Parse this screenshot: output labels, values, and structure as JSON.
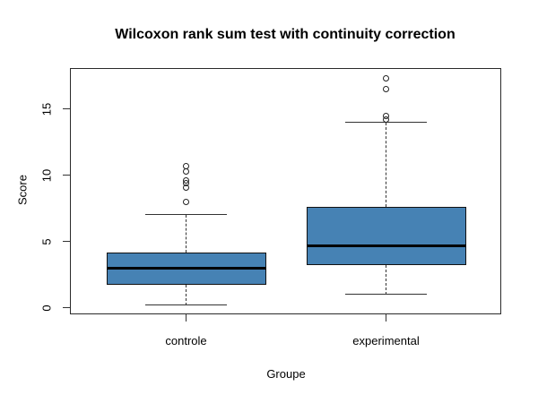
{
  "chart_data": {
    "type": "boxplot",
    "title": "Wilcoxon rank sum test with continuity correction",
    "xlabel": "Groupe",
    "ylabel": "Score",
    "categories": [
      "controle",
      "experimental"
    ],
    "yticks": [
      0,
      5,
      10,
      15
    ],
    "ylim": [
      -0.5,
      18.1
    ],
    "grid": false,
    "legend": "none",
    "colors": {
      "box_fill": "#4682B4",
      "box_border": "#111111",
      "median": "#000000",
      "axis": "#2a2a2a",
      "background": "#ffffff"
    },
    "groups": [
      {
        "name": "controle",
        "whisker_low": 0.2,
        "q1": 1.7,
        "median": 3.0,
        "q3": 4.2,
        "whisker_high": 7.0,
        "outliers": [
          10.7,
          10.3,
          9.6,
          9.4,
          9.1,
          8.0
        ]
      },
      {
        "name": "experimental",
        "whisker_low": 1.0,
        "q1": 3.25,
        "median": 4.7,
        "q3": 7.6,
        "whisker_high": 14.0,
        "outliers": [
          17.3,
          16.5,
          14.5,
          14.2
        ]
      }
    ]
  }
}
